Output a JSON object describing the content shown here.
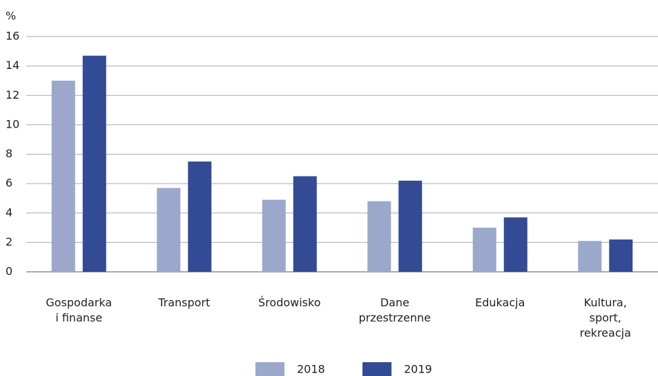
{
  "chart_data": {
    "type": "bar",
    "y_axis_label": "%",
    "categories": [
      "Gospodarka\ni finanse",
      "Transport",
      "Środowisko",
      "Dane\nprzestrzenne",
      "Edukacja",
      "Kultura,\nsport,\nrekreacja"
    ],
    "series": [
      {
        "name": "2018",
        "color": "#9ba8cc",
        "values": [
          13,
          5.7,
          4.9,
          4.8,
          3.0,
          2.1
        ]
      },
      {
        "name": "2019",
        "color": "#334a94",
        "values": [
          14.7,
          7.5,
          6.5,
          6.2,
          3.7,
          2.2
        ]
      }
    ],
    "ylim": [
      0,
      16
    ],
    "yticks": [
      0,
      2,
      4,
      6,
      8,
      10,
      12,
      14,
      16
    ],
    "grid": true,
    "legend": "bottom"
  }
}
